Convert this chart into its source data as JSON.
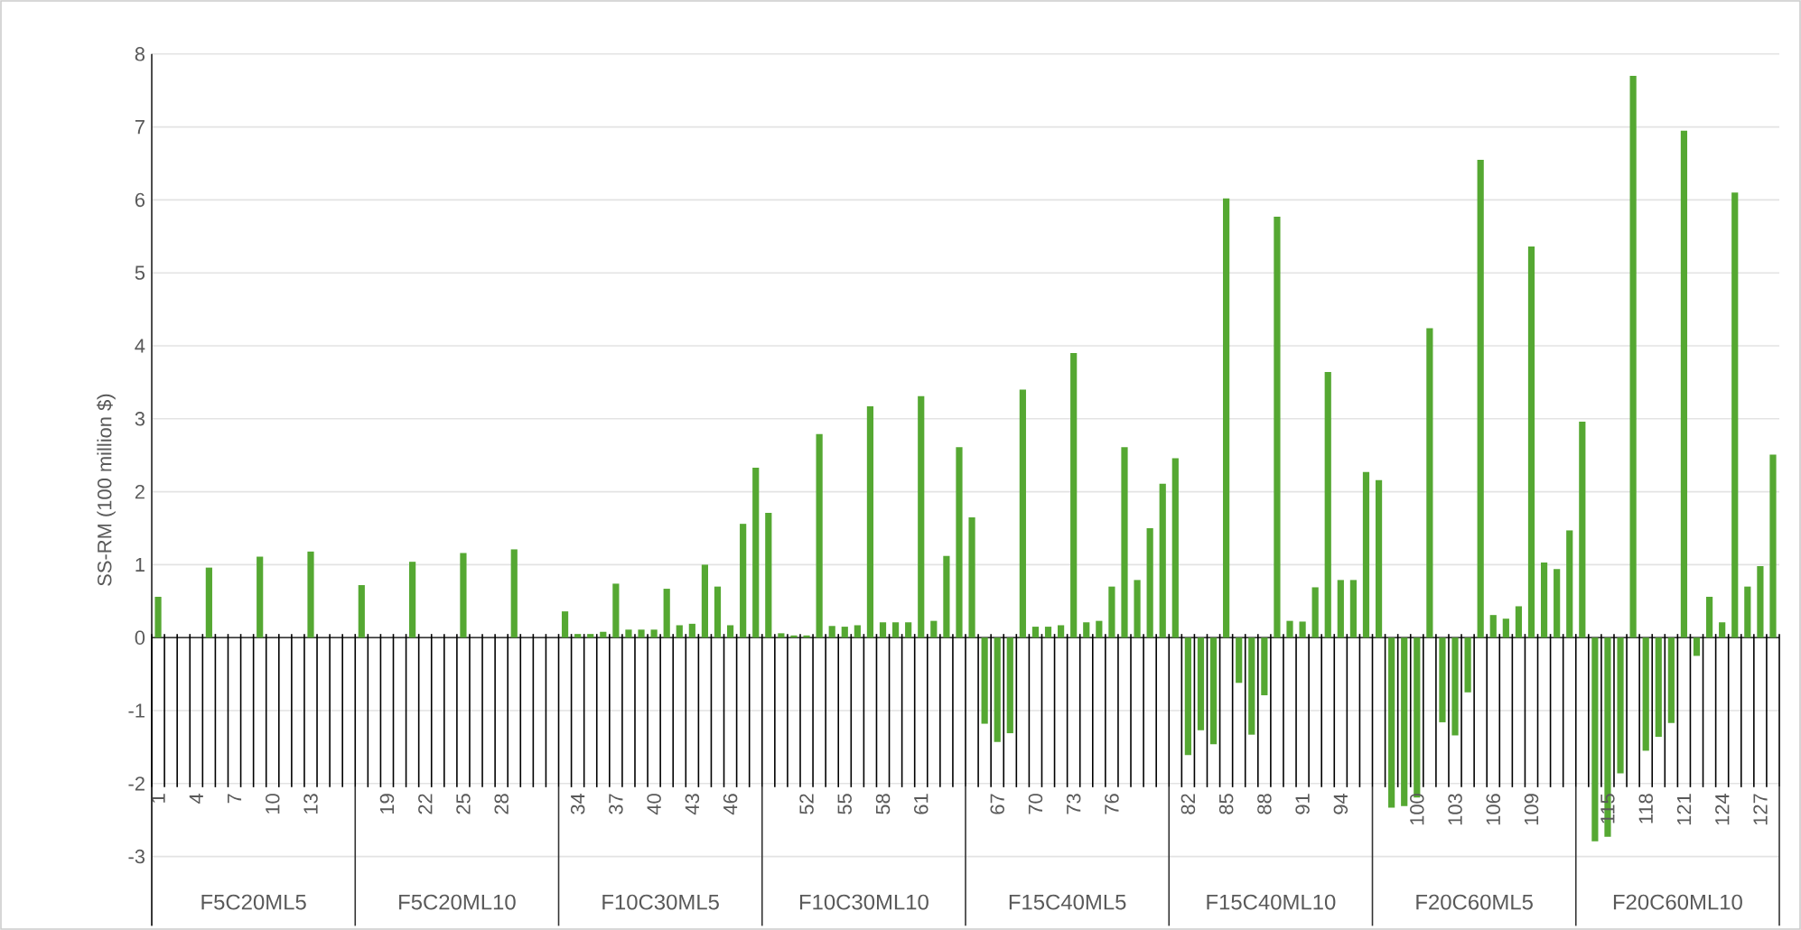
{
  "chart_data": {
    "type": "bar",
    "ylabel": "SS-RM (100 million $)",
    "color": "#55a832",
    "grid": "y",
    "ylim": [
      -3.95,
      8
    ],
    "yticks": [
      -3,
      -2,
      -1,
      0,
      1,
      2,
      3,
      4,
      5,
      6,
      7,
      8
    ],
    "annotations": [
      "F5C20ML5",
      "F5C20ML10",
      "F10C30ML5",
      "F10C30ML10",
      "F15C40ML5",
      "F15C40ML10",
      "F20C60ML5",
      "F20C60ML10"
    ],
    "categories": [
      "1",
      null,
      null,
      "4",
      null,
      null,
      "7",
      null,
      null,
      "10",
      null,
      null,
      "13",
      null,
      null,
      null,
      null,
      null,
      "19",
      null,
      null,
      "22",
      null,
      null,
      "25",
      null,
      null,
      "28",
      null,
      null,
      null,
      null,
      null,
      "34",
      null,
      null,
      "37",
      null,
      null,
      "40",
      null,
      null,
      "43",
      null,
      null,
      "46",
      null,
      null,
      null,
      null,
      null,
      "52",
      null,
      null,
      "55",
      null,
      null,
      "58",
      null,
      null,
      "61",
      null,
      null,
      null,
      null,
      null,
      "67",
      null,
      null,
      "70",
      null,
      null,
      "73",
      null,
      null,
      "76",
      null,
      null,
      null,
      null,
      null,
      "82",
      null,
      null,
      "85",
      null,
      null,
      "88",
      null,
      null,
      "91",
      null,
      null,
      "94",
      null,
      null,
      null,
      null,
      null,
      "100",
      null,
      null,
      "103",
      null,
      null,
      "106",
      null,
      null,
      "109",
      null,
      null,
      null,
      null,
      null,
      "115",
      null,
      null,
      "118",
      null,
      null,
      "121",
      null,
      null,
      "124",
      null,
      null,
      "127",
      null
    ],
    "values": [
      0.56,
      0,
      0,
      0,
      0.96,
      0,
      0,
      0,
      1.11,
      0,
      0,
      0,
      1.18,
      0,
      0,
      0,
      0.72,
      0,
      0,
      0,
      1.04,
      0,
      0,
      0,
      1.16,
      0,
      0,
      0,
      1.21,
      0,
      0,
      0,
      0.36,
      0.05,
      0.05,
      0.08,
      0.74,
      0.11,
      0.11,
      0.11,
      0.67,
      0.17,
      0.19,
      1.0,
      0.7,
      0.17,
      1.56,
      2.33,
      1.71,
      0.06,
      0.03,
      0.03,
      2.79,
      0.16,
      0.15,
      0.17,
      3.17,
      0.21,
      0.21,
      0.21,
      3.31,
      0.23,
      1.12,
      2.61,
      1.65,
      -1.18,
      -1.43,
      -1.31,
      3.4,
      0.15,
      0.15,
      0.17,
      3.9,
      0.21,
      0.23,
      0.7,
      2.61,
      0.79,
      1.5,
      2.11,
      2.46,
      -1.61,
      -1.27,
      -1.46,
      6.02,
      -0.62,
      -1.33,
      -0.79,
      5.77,
      0.23,
      0.22,
      0.69,
      3.64,
      0.79,
      0.79,
      2.27,
      2.16,
      -2.33,
      -2.31,
      -2.19,
      4.24,
      -1.16,
      -1.34,
      -0.75,
      6.55,
      0.31,
      0.26,
      0.43,
      5.36,
      1.03,
      0.94,
      1.47,
      2.96,
      -2.79,
      -2.73,
      -1.86,
      7.7,
      -1.55,
      -1.36,
      -1.17,
      6.95,
      -0.25,
      0.56,
      0.21,
      6.1,
      0.7,
      0.98,
      2.51
    ]
  }
}
